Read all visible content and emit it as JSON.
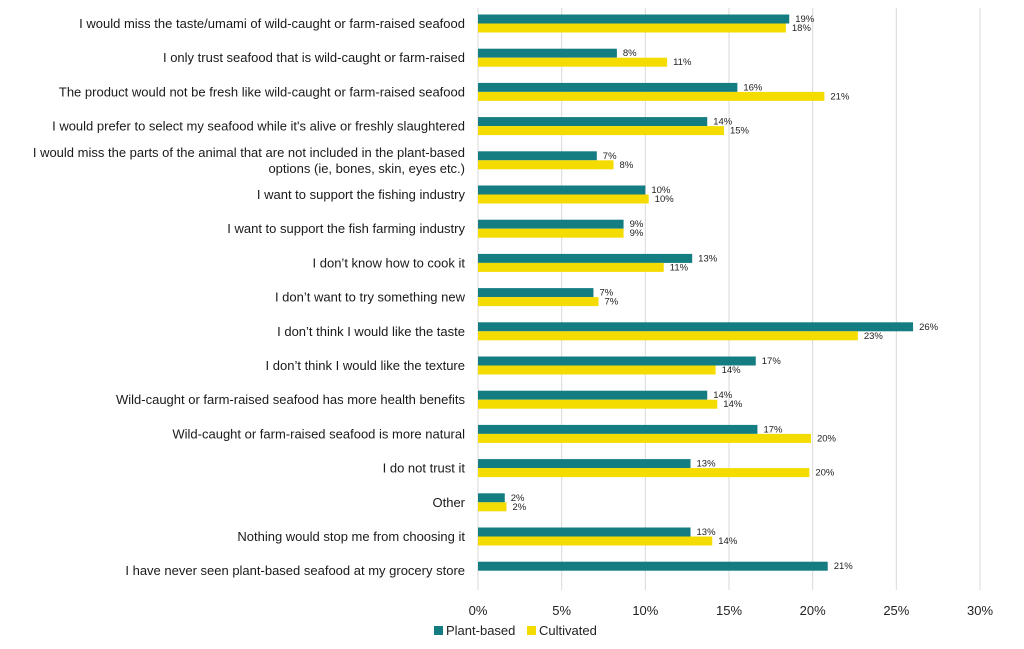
{
  "chart_data": {
    "type": "bar",
    "orientation": "horizontal",
    "categories": [
      "I would miss the taste/umami of wild-caught or farm-raised seafood",
      "I only trust seafood that is wild-caught or farm-raised",
      "The product would not be fresh like wild-caught or farm-raised seafood",
      "I would prefer to select my seafood while it's alive or freshly slaughtered",
      "I would miss the parts of the animal that are not included in the plant-based options (ie, bones, skin, eyes etc.)",
      "I want to support the fishing industry",
      "I want to support the fish farming industry",
      "I don’t know how to cook it",
      "I don’t want to try something new",
      "I don’t think I would like the taste",
      "I don’t think I would like the texture",
      "Wild-caught or farm-raised seafood has more health benefits",
      "Wild-caught or farm-raised seafood is more natural",
      "I do not trust it",
      "Other",
      "Nothing would stop me from choosing it",
      "I have never seen plant-based seafood at my grocery store"
    ],
    "category_lines": [
      [
        "I would miss the taste/umami of wild-caught or farm-raised seafood"
      ],
      [
        "I only trust seafood that is wild-caught or farm-raised"
      ],
      [
        "The product would not be fresh like wild-caught or farm-raised seafood"
      ],
      [
        "I would prefer to select my seafood while it's alive or freshly slaughtered"
      ],
      [
        "I would miss the parts of the animal that are not included in the plant-based",
        "options (ie, bones, skin, eyes etc.)"
      ],
      [
        "I want to support the fishing industry"
      ],
      [
        "I want to support the fish farming industry"
      ],
      [
        "I don’t know how to cook it"
      ],
      [
        "I don’t want to try something new"
      ],
      [
        "I don’t think I would like the taste"
      ],
      [
        "I don’t think I would like the texture"
      ],
      [
        "Wild-caught or farm-raised seafood has more health benefits"
      ],
      [
        "Wild-caught or farm-raised seafood is more natural"
      ],
      [
        "I do not trust it"
      ],
      [
        "Other"
      ],
      [
        "Nothing would stop me from choosing it"
      ],
      [
        "I have never seen plant-based seafood at my grocery store"
      ]
    ],
    "series": [
      {
        "name": "Plant-based",
        "color": "#147d82",
        "values": [
          19,
          8,
          16,
          14,
          7,
          10,
          9,
          13,
          7,
          26,
          17,
          14,
          17,
          13,
          2,
          13,
          21
        ],
        "labels": [
          "19%",
          "8%",
          "16%",
          "14%",
          "7%",
          "10%",
          "9%",
          "13%",
          "7%",
          "26%",
          "17%",
          "14%",
          "17%",
          "13%",
          "2%",
          "13%",
          "21%"
        ],
        "plot_values": [
          18.6,
          8.3,
          15.5,
          13.7,
          7.1,
          10.0,
          8.7,
          12.8,
          6.9,
          26.0,
          16.6,
          13.7,
          16.7,
          12.7,
          1.6,
          12.7,
          20.9
        ]
      },
      {
        "name": "Cultivated",
        "color": "#f5dc00",
        "values": [
          18,
          11,
          21,
          15,
          8,
          10,
          9,
          11,
          7,
          23,
          14,
          14,
          20,
          20,
          2,
          14,
          null
        ],
        "labels": [
          "18%",
          "11%",
          "21%",
          "15%",
          "8%",
          "10%",
          "9%",
          "11%",
          "7%",
          "23%",
          "14%",
          "14%",
          "20%",
          "20%",
          "2%",
          "14%",
          null
        ],
        "plot_values": [
          18.4,
          11.3,
          20.7,
          14.7,
          8.1,
          10.2,
          8.7,
          11.1,
          7.2,
          22.7,
          14.2,
          14.3,
          19.9,
          19.8,
          1.7,
          14.0,
          null
        ]
      }
    ],
    "x_ticks": [
      "0%",
      "5%",
      "10%",
      "15%",
      "20%",
      "25%",
      "30%"
    ],
    "xlim": [
      0,
      30
    ],
    "grid": true,
    "legend_position": "bottom-left"
  }
}
